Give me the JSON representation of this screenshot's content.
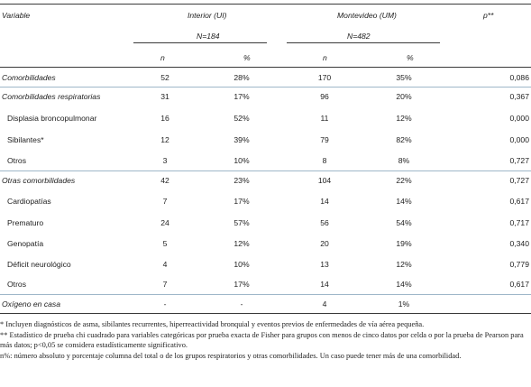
{
  "header": {
    "variable": "Variable",
    "interior": "Interior (UI)",
    "montevideo": "Montevideo (UM)",
    "p": "p**",
    "n_interior": "N=184",
    "n_montevideo": "N=482",
    "col_n": "n",
    "col_pct": "%"
  },
  "rows": [
    {
      "label": "Comorbilidades",
      "n1": "52",
      "p1": "28%",
      "n2": "170",
      "p2": "35%",
      "p": "0,086"
    },
    {
      "label": "Comorbilidades respiratorias",
      "n1": "31",
      "p1": "17%",
      "n2": "96",
      "p2": "20%",
      "p": "0,367"
    },
    {
      "label": "Displasia broncopulmonar",
      "n1": "16",
      "p1": "52%",
      "n2": "11",
      "p2": "12%",
      "p": "0,000"
    },
    {
      "label": "Sibilantes*",
      "n1": "12",
      "p1": "39%",
      "n2": "79",
      "p2": "82%",
      "p": "0,000"
    },
    {
      "label": "Otros",
      "n1": "3",
      "p1": "10%",
      "n2": "8",
      "p2": "8%",
      "p": "0,727"
    },
    {
      "label": "Otras comorbilidades",
      "n1": "42",
      "p1": "23%",
      "n2": "104",
      "p2": "22%",
      "p": "0,727"
    },
    {
      "label": "Cardiopatías",
      "n1": "7",
      "p1": "17%",
      "n2": "14",
      "p2": "14%",
      "p": "0,617"
    },
    {
      "label": "Prematuro",
      "n1": "24",
      "p1": "57%",
      "n2": "56",
      "p2": "54%",
      "p": "0,717"
    },
    {
      "label": "Genopatía",
      "n1": "5",
      "p1": "12%",
      "n2": "20",
      "p2": "19%",
      "p": "0,340"
    },
    {
      "label": "Déficit neurológico",
      "n1": "4",
      "p1": "10%",
      "n2": "13",
      "p2": "12%",
      "p": "0,779"
    },
    {
      "label": "Otros",
      "n1": "7",
      "p1": "17%",
      "n2": "14",
      "p2": "14%",
      "p": "0,617"
    },
    {
      "label": "Oxígeno en casa",
      "n1": "-",
      "p1": "-",
      "n2": "4",
      "p2": "1%",
      "p": ""
    }
  ],
  "footnotes": [
    "* Incluyen diagnósticos de asma, sibilantes recurrentes, hiperreactividad bronquial y eventos previos de enfermedades de vía aérea pequeña.",
    "** Estadístico de prueba chi cuadrado para variables categóricas por prueba exacta de Fisher para grupos con menos de cinco datos por celda o por la prueba de Pearson para más datos; p<0,05 se considera estadísticamente significativo.",
    "n%: número absoluto y porcentaje columna del total o de los grupos respiratorios y otras comorbilidades. Un caso puede tener más de una comorbilidad."
  ]
}
